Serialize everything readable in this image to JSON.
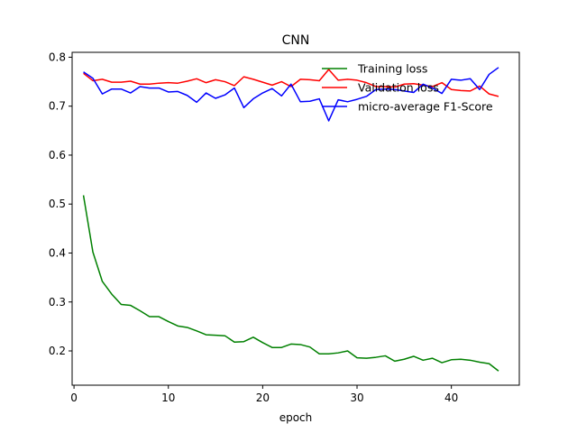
{
  "chart_data": {
    "type": "line",
    "title": "CNN",
    "xlabel": "epoch",
    "ylabel": "",
    "xlim": [
      -0.2,
      47.2
    ],
    "ylim": [
      0.13,
      0.81
    ],
    "xticks": [
      0,
      10,
      20,
      30,
      40
    ],
    "yticks": [
      0.2,
      0.3,
      0.4,
      0.5,
      0.6,
      0.7,
      0.8
    ],
    "grid": false,
    "legend_position": "top-right",
    "x": [
      1,
      2,
      3,
      4,
      5,
      6,
      7,
      8,
      9,
      10,
      11,
      12,
      13,
      14,
      15,
      16,
      17,
      18,
      19,
      20,
      21,
      22,
      23,
      24,
      25,
      26,
      27,
      28,
      29,
      30,
      31,
      32,
      33,
      34,
      35,
      36,
      37,
      38,
      39,
      40,
      41,
      42,
      43,
      44,
      45
    ],
    "series": [
      {
        "name": "Training loss",
        "color": "#008000",
        "values": [
          0.518,
          0.402,
          0.342,
          0.316,
          0.295,
          0.293,
          0.282,
          0.27,
          0.27,
          0.26,
          0.251,
          0.248,
          0.241,
          0.233,
          0.232,
          0.231,
          0.218,
          0.219,
          0.228,
          0.217,
          0.207,
          0.207,
          0.214,
          0.213,
          0.208,
          0.194,
          0.194,
          0.196,
          0.2,
          0.186,
          0.185,
          0.187,
          0.19,
          0.179,
          0.183,
          0.189,
          0.181,
          0.185,
          0.176,
          0.182,
          0.183,
          0.181,
          0.177,
          0.174,
          0.159
        ]
      },
      {
        "name": "Validation loss",
        "color": "#ff0000",
        "values": [
          0.767,
          0.752,
          0.755,
          0.749,
          0.749,
          0.751,
          0.745,
          0.745,
          0.747,
          0.748,
          0.747,
          0.751,
          0.756,
          0.748,
          0.754,
          0.75,
          0.742,
          0.76,
          0.755,
          0.749,
          0.743,
          0.75,
          0.74,
          0.755,
          0.754,
          0.752,
          0.775,
          0.753,
          0.755,
          0.753,
          0.748,
          0.74,
          0.74,
          0.739,
          0.745,
          0.746,
          0.743,
          0.74,
          0.748,
          0.734,
          0.732,
          0.731,
          0.741,
          0.725,
          0.72
        ]
      },
      {
        "name": "micro-average F1-Score",
        "color": "#0000ff",
        "values": [
          0.77,
          0.757,
          0.725,
          0.735,
          0.735,
          0.727,
          0.74,
          0.737,
          0.737,
          0.729,
          0.73,
          0.722,
          0.708,
          0.727,
          0.716,
          0.723,
          0.737,
          0.697,
          0.715,
          0.727,
          0.736,
          0.721,
          0.745,
          0.709,
          0.71,
          0.715,
          0.67,
          0.713,
          0.709,
          0.714,
          0.72,
          0.734,
          0.735,
          0.734,
          0.731,
          0.728,
          0.745,
          0.737,
          0.726,
          0.755,
          0.753,
          0.756,
          0.734,
          0.765,
          0.779
        ]
      }
    ]
  }
}
